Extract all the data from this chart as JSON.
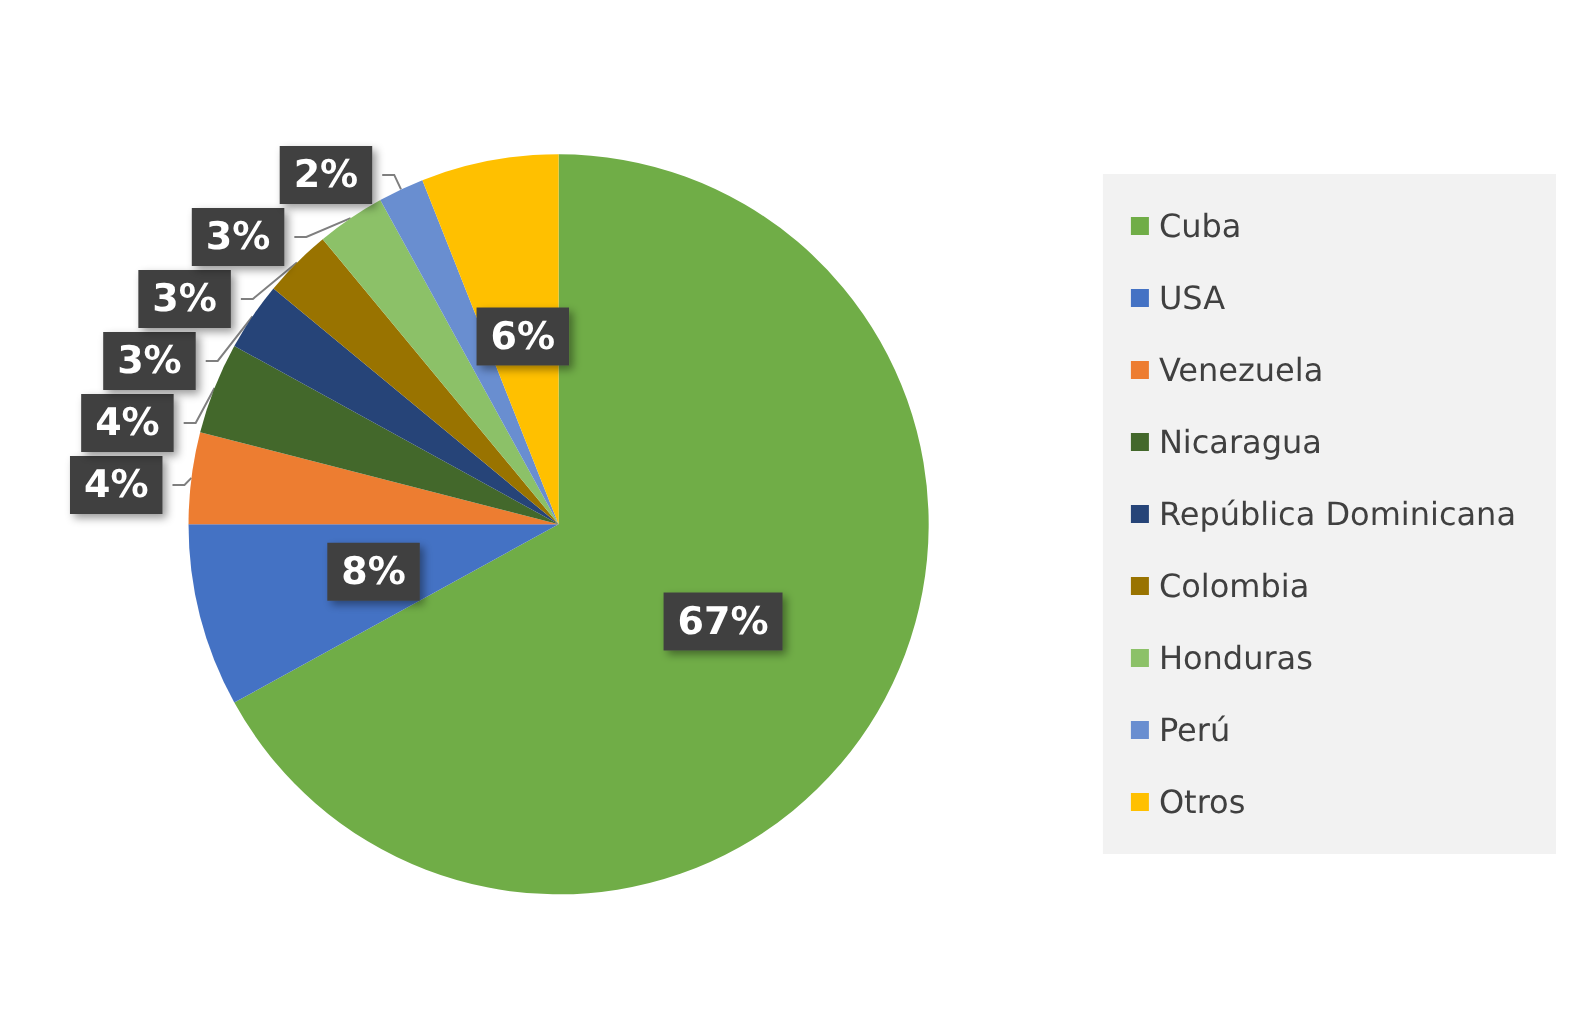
{
  "chart_data": {
    "type": "pie",
    "categories": [
      "Cuba",
      "USA",
      "Venezuela",
      "Nicaragua",
      "República Dominicana",
      "Colombia",
      "Honduras",
      "Perú",
      "Otros"
    ],
    "values": [
      67,
      8,
      4,
      4,
      3,
      3,
      3,
      2,
      6
    ],
    "colors": [
      "#70ad47",
      "#4472c4",
      "#ed7d31",
      "#43682b",
      "#264478",
      "#997300",
      "#8cc168",
      "#698ed0",
      "#ffc000"
    ],
    "value_labels": [
      "67%",
      "8%",
      "4%",
      "4%",
      "3%",
      "3%",
      "3%",
      "2%",
      "6%"
    ],
    "legend": "right"
  }
}
